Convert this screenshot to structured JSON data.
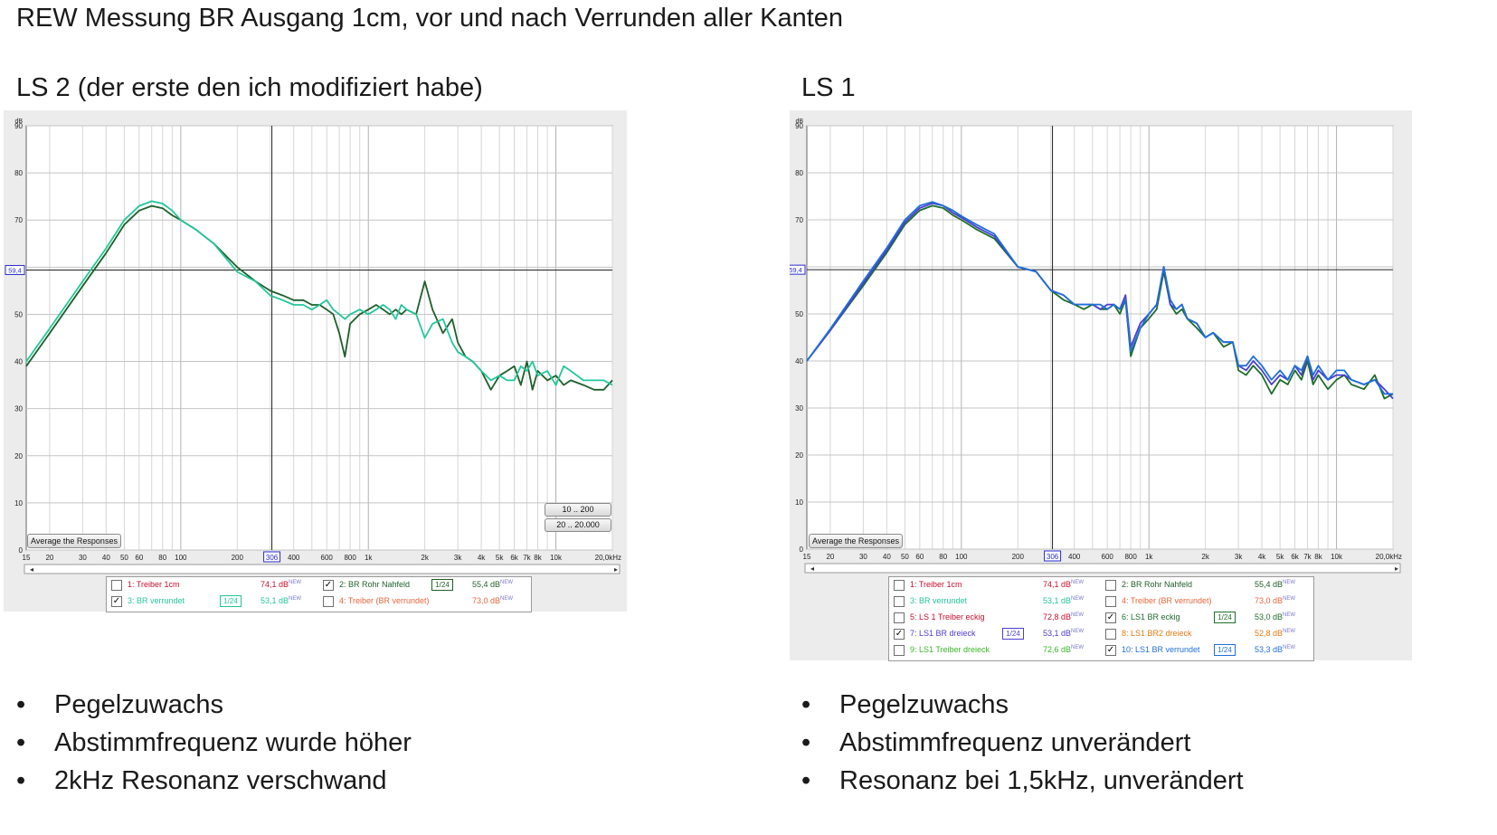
{
  "title": "REW Messung BR Ausgang 1cm, vor und nach Verrunden aller Kanten",
  "left": {
    "heading": "LS 2 (der erste den ich modifiziert habe)",
    "bullets": [
      "Pegelzuwachs",
      "Abstimmfrequenz wurde höher",
      "2kHz Resonanz verschwand"
    ]
  },
  "right": {
    "heading": "LS 1",
    "bullets": [
      "Pegelzuwachs",
      "Abstimmfrequenz unverändert",
      "Resonanz bei 1,5kHz, unverändert"
    ]
  },
  "ui": {
    "average_button": "Average the Responses",
    "zoom_10_200": "10 .. 200",
    "zoom_20_20000": "20 .. 20.000",
    "cursor_db": "59,4",
    "cursor_hz": "306",
    "smoothing": "1/24"
  },
  "legend_left": [
    {
      "label": "1: Treiber 1cm",
      "value": "74,1 dB",
      "color": "#c8102e",
      "checked": false,
      "smoothing": false
    },
    {
      "label": "2: BR Rohr Nahfeld",
      "value": "55,4 dB",
      "color": "#1e5f2a",
      "checked": true,
      "smoothing": true
    },
    {
      "label": "3: BR verrundet",
      "value": "53,1 dB",
      "color": "#23c69a",
      "checked": true,
      "smoothing": true
    },
    {
      "label": "4: Treiber (BR verrundet)",
      "value": "73,0 dB",
      "color": "#e8663c",
      "checked": false,
      "smoothing": false
    }
  ],
  "legend_right": [
    {
      "label": "1: Treiber 1cm",
      "value": "74,1 dB",
      "color": "#c8102e",
      "checked": false,
      "smoothing": false
    },
    {
      "label": "2: BR Rohr Nahfeld",
      "value": "55,4 dB",
      "color": "#1e5f2a",
      "checked": false,
      "smoothing": false
    },
    {
      "label": "3: BR verrundet",
      "value": "53,1 dB",
      "color": "#23c69a",
      "checked": false,
      "smoothing": false
    },
    {
      "label": "4: Treiber (BR verrundet)",
      "value": "73,0 dB",
      "color": "#e8663c",
      "checked": false,
      "smoothing": false
    },
    {
      "label": "5: LS 1 Treiber eckig",
      "value": "72,8 dB",
      "color": "#c8102e",
      "checked": false,
      "smoothing": false
    },
    {
      "label": "6: LS1 BR eckig",
      "value": "53,0 dB",
      "color": "#1e6e2a",
      "checked": true,
      "smoothing": true
    },
    {
      "label": "7: LS1 BR dreieck",
      "value": "53,1 dB",
      "color": "#4b3fd0",
      "checked": true,
      "smoothing": true
    },
    {
      "label": "8: LS1 BR2 dreieck",
      "value": "52,8 dB",
      "color": "#e07b16",
      "checked": false,
      "smoothing": false
    },
    {
      "label": "9: LS1 Treiber dreieck",
      "value": "72,6 dB",
      "color": "#3cb52a",
      "checked": false,
      "smoothing": false
    },
    {
      "label": "10: LS1 BR verrundet",
      "value": "53,3 dB",
      "color": "#1f6fd8",
      "checked": true,
      "smoothing": true
    }
  ],
  "chart_data": [
    {
      "type": "line",
      "xscale": "log",
      "xlim": [
        15,
        20000
      ],
      "ylim": [
        0,
        90
      ],
      "ylabel": "dB",
      "xunit": "Hz",
      "yticks": [
        0,
        10,
        20,
        30,
        40,
        50,
        70,
        80,
        90
      ],
      "xtick_labels": [
        [
          15,
          "15"
        ],
        [
          20,
          "20"
        ],
        [
          30,
          "30"
        ],
        [
          40,
          "40"
        ],
        [
          50,
          "50"
        ],
        [
          60,
          "60"
        ],
        [
          80,
          "80"
        ],
        [
          100,
          "100"
        ],
        [
          200,
          "200"
        ],
        [
          400,
          "400"
        ],
        [
          600,
          "600"
        ],
        [
          800,
          "800"
        ],
        [
          1000,
          "1k"
        ],
        [
          2000,
          "2k"
        ],
        [
          3000,
          "3k"
        ],
        [
          4000,
          "4k"
        ],
        [
          5000,
          "5k"
        ],
        [
          6000,
          "6k"
        ],
        [
          7000,
          "7k"
        ],
        [
          8000,
          "8k"
        ],
        [
          10000,
          "10k"
        ],
        [
          20000,
          "20,0kHz"
        ]
      ],
      "grid": true,
      "series": [
        {
          "name": "2: BR Rohr Nahfeld",
          "color": "#1e5f2a",
          "x": [
            15,
            20,
            30,
            40,
            50,
            60,
            70,
            80,
            90,
            100,
            120,
            150,
            200,
            250,
            300,
            350,
            400,
            450,
            500,
            550,
            600,
            650,
            700,
            750,
            800,
            900,
            1000,
            1100,
            1200,
            1300,
            1400,
            1500,
            1600,
            1800,
            2000,
            2200,
            2500,
            2800,
            3000,
            3300,
            3600,
            4000,
            4500,
            5000,
            5500,
            6000,
            6500,
            7000,
            7500,
            8000,
            9000,
            10000,
            11000,
            12000,
            14000,
            16000,
            18000,
            20000
          ],
          "y": [
            39,
            46,
            56,
            63,
            69,
            72,
            73,
            72.5,
            71,
            70,
            68,
            65,
            60,
            57,
            55,
            54,
            53,
            53,
            52,
            52,
            51,
            50,
            46,
            41,
            48,
            50,
            51,
            52,
            51,
            50,
            51,
            50,
            51,
            50,
            57,
            51,
            46,
            49,
            44,
            41,
            40,
            38,
            34,
            37,
            38,
            39,
            35,
            40,
            34,
            38,
            36,
            37,
            35,
            36,
            35,
            34,
            34,
            36
          ]
        },
        {
          "name": "3: BR verrundet",
          "color": "#23c69a",
          "x": [
            15,
            20,
            30,
            40,
            50,
            60,
            70,
            80,
            90,
            100,
            120,
            150,
            200,
            250,
            300,
            350,
            400,
            450,
            500,
            550,
            600,
            650,
            700,
            750,
            800,
            900,
            1000,
            1100,
            1200,
            1300,
            1400,
            1500,
            1600,
            1800,
            2000,
            2200,
            2500,
            2800,
            3000,
            3300,
            3600,
            4000,
            4500,
            5000,
            5500,
            6000,
            6500,
            7000,
            7500,
            8000,
            9000,
            10000,
            11000,
            12000,
            14000,
            16000,
            18000,
            20000
          ],
          "y": [
            40,
            47,
            57,
            64,
            70,
            73,
            74,
            73.5,
            72,
            70,
            68,
            65,
            59,
            57,
            54,
            53,
            52,
            52,
            51,
            52,
            53,
            51,
            50,
            49,
            50,
            51,
            50,
            51,
            52,
            51,
            49,
            52,
            51,
            50,
            45,
            48,
            49,
            44,
            42,
            41,
            40,
            38,
            36,
            37,
            36,
            36,
            39,
            38,
            40,
            37,
            38,
            35,
            39,
            38,
            36,
            36,
            36,
            35
          ]
        }
      ]
    },
    {
      "type": "line",
      "xscale": "log",
      "xlim": [
        15,
        20000
      ],
      "ylim": [
        0,
        90
      ],
      "ylabel": "dB",
      "xunit": "Hz",
      "yticks": [
        0,
        10,
        20,
        30,
        40,
        50,
        70,
        80,
        90
      ],
      "xtick_labels": [
        [
          15,
          "15"
        ],
        [
          20,
          "20"
        ],
        [
          30,
          "30"
        ],
        [
          40,
          "40"
        ],
        [
          50,
          "50"
        ],
        [
          60,
          "60"
        ],
        [
          80,
          "80"
        ],
        [
          100,
          "100"
        ],
        [
          200,
          "200"
        ],
        [
          400,
          "400"
        ],
        [
          600,
          "600"
        ],
        [
          800,
          "800"
        ],
        [
          1000,
          "1k"
        ],
        [
          2000,
          "2k"
        ],
        [
          3000,
          "3k"
        ],
        [
          4000,
          "4k"
        ],
        [
          5000,
          "5k"
        ],
        [
          6000,
          "6k"
        ],
        [
          7000,
          "7k"
        ],
        [
          8000,
          "8k"
        ],
        [
          10000,
          "10k"
        ],
        [
          20000,
          "20,0kHz"
        ]
      ],
      "grid": true,
      "series": [
        {
          "name": "6: LS1 BR eckig",
          "color": "#1e6e2a",
          "x": [
            15,
            20,
            30,
            40,
            50,
            60,
            70,
            80,
            90,
            100,
            120,
            150,
            200,
            250,
            300,
            350,
            400,
            450,
            500,
            550,
            600,
            650,
            700,
            750,
            800,
            900,
            1000,
            1100,
            1200,
            1300,
            1400,
            1500,
            1600,
            1800,
            2000,
            2200,
            2500,
            2800,
            3000,
            3300,
            3600,
            4000,
            4500,
            5000,
            5500,
            6000,
            6500,
            7000,
            7500,
            8000,
            9000,
            10000,
            11000,
            12000,
            14000,
            16000,
            18000,
            20000
          ],
          "y": [
            40,
            46.5,
            56,
            63,
            69,
            72,
            73,
            72.5,
            71,
            70,
            68,
            66,
            60,
            59,
            55,
            53,
            52,
            51,
            52,
            51,
            51,
            52,
            50,
            53,
            41,
            47,
            49,
            51,
            59,
            52,
            50,
            51,
            49,
            47,
            45,
            46,
            43,
            44,
            38,
            37,
            39,
            37,
            33,
            36,
            35,
            38,
            36,
            40,
            35,
            37,
            34,
            36,
            37,
            35,
            34,
            37,
            32,
            33
          ]
        },
        {
          "name": "7: LS1 BR dreieck",
          "color": "#4b3fd0",
          "x": [
            15,
            20,
            30,
            40,
            50,
            60,
            70,
            80,
            90,
            100,
            120,
            150,
            200,
            250,
            300,
            350,
            400,
            450,
            500,
            550,
            600,
            650,
            700,
            750,
            800,
            900,
            1000,
            1100,
            1200,
            1300,
            1400,
            1500,
            1600,
            1800,
            2000,
            2200,
            2500,
            2800,
            3000,
            3300,
            3600,
            4000,
            4500,
            5000,
            5500,
            6000,
            6500,
            7000,
            7500,
            8000,
            9000,
            10000,
            11000,
            12000,
            14000,
            16000,
            18000,
            20000
          ],
          "y": [
            40,
            46.5,
            56.5,
            63.5,
            69.5,
            72.5,
            73.5,
            73,
            71.5,
            70.5,
            68.5,
            66.5,
            60,
            59,
            55,
            54,
            52,
            52,
            52,
            51,
            52,
            52,
            51,
            54,
            43,
            48,
            50,
            52,
            60,
            52,
            51,
            52,
            49,
            48,
            45,
            46,
            44,
            44,
            39,
            38,
            40,
            38,
            35,
            37,
            36,
            39,
            37,
            41,
            36,
            38,
            36,
            37,
            37,
            36,
            35,
            36,
            34,
            32
          ]
        },
        {
          "name": "10: LS1 BR verrundet",
          "color": "#1f6fd8",
          "x": [
            15,
            20,
            30,
            40,
            50,
            60,
            70,
            80,
            90,
            100,
            120,
            150,
            200,
            250,
            300,
            350,
            400,
            450,
            500,
            550,
            600,
            650,
            700,
            750,
            800,
            900,
            1000,
            1100,
            1200,
            1300,
            1400,
            1500,
            1600,
            1800,
            2000,
            2200,
            2500,
            2800,
            3000,
            3300,
            3600,
            4000,
            4500,
            5000,
            5500,
            6000,
            6500,
            7000,
            7500,
            8000,
            9000,
            10000,
            11000,
            12000,
            14000,
            16000,
            18000,
            20000
          ],
          "y": [
            40,
            46.8,
            57,
            64,
            70,
            73,
            73.8,
            73,
            72,
            70.8,
            69,
            67,
            60,
            59,
            55,
            54,
            52,
            52,
            52,
            52,
            51,
            52,
            51,
            53,
            42,
            47,
            50,
            52,
            60,
            53,
            51,
            52,
            49,
            48,
            45,
            46,
            44,
            44,
            39,
            39,
            41,
            39,
            36,
            38,
            36,
            39,
            38,
            41,
            37,
            39,
            36,
            38,
            38,
            36,
            35,
            36,
            33,
            33
          ]
        }
      ]
    }
  ]
}
